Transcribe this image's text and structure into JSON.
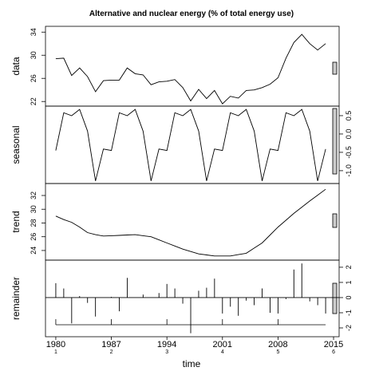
{
  "title": "Alternative and nuclear energy (% of total energy use)",
  "xlabel": "time",
  "xlim": [
    1978.7,
    2015.7
  ],
  "xticks": [
    1980,
    1987,
    1994,
    2001,
    2008,
    2015
  ],
  "cycle_labels": [
    "1",
    "2",
    "3",
    "4",
    "5",
    "6"
  ],
  "chart_data": [
    {
      "type": "line",
      "ylabel": "data",
      "axis_side": "left",
      "ylim": [
        21.2,
        35.0
      ],
      "yticks": [
        22,
        26,
        30,
        34
      ],
      "x": [
        1980,
        1981,
        1982,
        1983,
        1984,
        1985,
        1986,
        1987,
        1988,
        1989,
        1990,
        1991,
        1992,
        1993,
        1994,
        1995,
        1996,
        1997,
        1998,
        1999,
        2000,
        2001,
        2002,
        2003,
        2004,
        2005,
        2006,
        2007,
        2008,
        2009,
        2010,
        2011,
        2012,
        2013,
        2014
      ],
      "values": [
        29.4,
        29.5,
        26.5,
        27.8,
        26.3,
        23.7,
        25.6,
        25.7,
        25.7,
        27.8,
        26.8,
        26.6,
        24.9,
        25.4,
        25.5,
        25.8,
        24.4,
        22.1,
        24.1,
        22.5,
        23.9,
        21.6,
        22.9,
        22.6,
        23.9,
        24.0,
        24.4,
        25.0,
        26.1,
        29.5,
        32.2,
        33.6,
        32.0,
        30.9,
        32.0
      ]
    },
    {
      "type": "line",
      "ylabel": "seasonal",
      "axis_side": "right",
      "ylim": [
        -1.35,
        0.76
      ],
      "yticks": [
        {
          "value": -1.0,
          "label": "-1.0"
        },
        {
          "value": -0.5,
          "label": "-0.5"
        },
        {
          "value": 0,
          "label": "0.0"
        },
        {
          "value": 0.5,
          "label": "0.5"
        }
      ],
      "x": [
        1980,
        1981,
        1982,
        1983,
        1984,
        1985,
        1986,
        1987,
        1988,
        1989,
        1990,
        1991,
        1992,
        1993,
        1994,
        1995,
        1996,
        1997,
        1998,
        1999,
        2000,
        2001,
        2002,
        2003,
        2004,
        2005,
        2006,
        2007,
        2008,
        2009,
        2010,
        2011,
        2012,
        2013,
        2014
      ],
      "values": [
        -0.45,
        0.58,
        0.5,
        0.67,
        0.08,
        -1.28,
        -0.41,
        -0.45,
        0.58,
        0.5,
        0.67,
        0.08,
        -1.28,
        -0.41,
        -0.45,
        0.58,
        0.5,
        0.67,
        0.08,
        -1.28,
        -0.41,
        -0.45,
        0.58,
        0.5,
        0.67,
        0.08,
        -1.28,
        -0.41,
        -0.45,
        0.58,
        0.5,
        0.67,
        0.08,
        -1.28,
        -0.41
      ]
    },
    {
      "type": "line",
      "ylabel": "trend",
      "axis_side": "left",
      "ylim": [
        22.6,
        33.74
      ],
      "yticks": [
        24,
        26,
        28,
        30,
        32
      ],
      "x": [
        1980,
        1981,
        1982,
        1983,
        1984,
        1985,
        1986,
        1987,
        1988,
        1989,
        1990,
        1991,
        1992,
        1993,
        1994,
        1995,
        1996,
        1997,
        1998,
        1999,
        2000,
        2001,
        2002,
        2003,
        2004,
        2005,
        2006,
        2007,
        2008,
        2009,
        2010,
        2011,
        2012,
        2013,
        2014
      ],
      "values": [
        29.0,
        28.5,
        28.1,
        27.4,
        26.6,
        26.3,
        26.1,
        26.15,
        26.2,
        26.25,
        26.3,
        26.15,
        26.0,
        25.55,
        25.1,
        24.65,
        24.2,
        23.85,
        23.5,
        23.35,
        23.2,
        23.2,
        23.2,
        23.4,
        23.6,
        24.35,
        25.1,
        26.25,
        27.4,
        28.4,
        29.4,
        30.3,
        31.2,
        32.05,
        32.9
      ]
    },
    {
      "type": "spike",
      "ylabel": "remainder",
      "axis_side": "right",
      "ylim": [
        -2.58,
        2.47
      ],
      "yticks": [
        -2,
        -1,
        0,
        1,
        2
      ],
      "x": [
        1980,
        1981,
        1982,
        1983,
        1984,
        1985,
        1986,
        1987,
        1988,
        1989,
        1990,
        1991,
        1992,
        1993,
        1994,
        1995,
        1996,
        1997,
        1998,
        1999,
        2000,
        2001,
        2002,
        2003,
        2004,
        2005,
        2006,
        2007,
        2008,
        2009,
        2010,
        2011,
        2012,
        2013,
        2014
      ],
      "values": [
        0.95,
        0.6,
        -1.7,
        0.1,
        -0.35,
        -1.25,
        0,
        0.05,
        -0.9,
        1.3,
        0,
        0.2,
        0,
        0.3,
        0.9,
        0.6,
        -0.4,
        -2.35,
        0.45,
        0.65,
        1.25,
        -1.05,
        -0.6,
        -1.2,
        -0.2,
        -0.5,
        0.6,
        -1.0,
        -1.05,
        -0.1,
        1.85,
        2.25,
        -0.25,
        -0.5,
        -1.05
      ]
    }
  ]
}
